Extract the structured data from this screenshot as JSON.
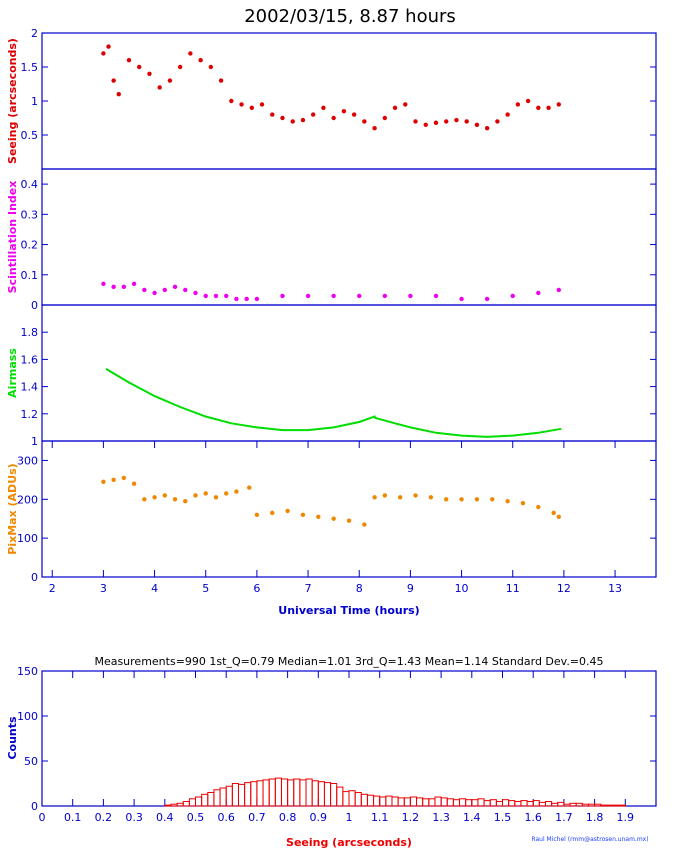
{
  "title": "2002/03/15, 8.87 hours",
  "colors": {
    "axis": "#0000cc",
    "seeing": "#dd0000",
    "scint": "#ee00ee",
    "airmass": "#00dd00",
    "pixmax": "#ee8800",
    "hist": "#ee0000"
  },
  "chart_data": [
    {
      "type": "scatter",
      "ylabel": "Seeing (arcseconds)",
      "xlim": [
        1.8,
        13.8
      ],
      "ylim": [
        0,
        2
      ],
      "yticks": [
        "0.5",
        "1",
        "1.5",
        "2"
      ],
      "grid": false,
      "series": [
        {
          "x": [
            3.0,
            3.1,
            3.2,
            3.3,
            3.5,
            3.7,
            3.9,
            4.1,
            4.3,
            4.5,
            4.7,
            4.9,
            5.1,
            5.3,
            5.5,
            5.7,
            5.9,
            6.1,
            6.3,
            6.5,
            6.7,
            6.9,
            7.1,
            7.3,
            7.5,
            7.7,
            7.9,
            8.1,
            8.3,
            8.5,
            8.7,
            8.9,
            9.1,
            9.3,
            9.5,
            9.7,
            9.9,
            10.1,
            10.3,
            10.5,
            10.7,
            10.9,
            11.1,
            11.3,
            11.5,
            11.7,
            11.9
          ],
          "values": [
            1.7,
            1.8,
            1.3,
            1.1,
            1.6,
            1.5,
            1.4,
            1.2,
            1.3,
            1.5,
            1.7,
            1.6,
            1.5,
            1.3,
            1.0,
            0.95,
            0.9,
            0.95,
            0.8,
            0.75,
            0.7,
            0.72,
            0.8,
            0.9,
            0.75,
            0.85,
            0.8,
            0.7,
            0.6,
            0.75,
            0.9,
            0.95,
            0.7,
            0.65,
            0.68,
            0.7,
            0.72,
            0.7,
            0.65,
            0.6,
            0.7,
            0.8,
            0.95,
            1.0,
            0.9,
            0.9,
            0.95
          ]
        }
      ]
    },
    {
      "type": "scatter",
      "ylabel": "Scintillation Index",
      "xlim": [
        1.8,
        13.8
      ],
      "ylim": [
        0,
        0.45
      ],
      "yticks": [
        "0",
        "0.1",
        "0.2",
        "0.3",
        "0.4"
      ],
      "grid": false,
      "series": [
        {
          "x": [
            3.0,
            3.2,
            3.4,
            3.6,
            3.8,
            4.0,
            4.2,
            4.4,
            4.6,
            4.8,
            5.0,
            5.2,
            5.4,
            5.6,
            5.8,
            6.0,
            6.5,
            7.0,
            7.5,
            8.0,
            8.5,
            9.0,
            9.5,
            10.0,
            10.5,
            11.0,
            11.5,
            11.9
          ],
          "values": [
            0.07,
            0.06,
            0.06,
            0.07,
            0.05,
            0.04,
            0.05,
            0.06,
            0.05,
            0.04,
            0.03,
            0.03,
            0.03,
            0.02,
            0.02,
            0.02,
            0.03,
            0.03,
            0.03,
            0.03,
            0.03,
            0.03,
            0.03,
            0.02,
            0.02,
            0.03,
            0.04,
            0.05
          ]
        }
      ]
    },
    {
      "type": "line",
      "ylabel": "Airmass",
      "xlim": [
        1.8,
        13.8
      ],
      "ylim": [
        1.0,
        2.0
      ],
      "yticks": [
        "1",
        "1.2",
        "1.4",
        "1.6",
        "1.8"
      ],
      "grid": false,
      "series": [
        {
          "x": [
            3.05,
            3.5,
            4.0,
            4.5,
            5.0,
            5.5,
            6.0,
            6.5,
            7.0,
            7.5,
            8.0,
            8.3,
            8.31,
            8.7,
            9.0,
            9.5,
            10.0,
            10.5,
            11.0,
            11.5,
            11.95
          ],
          "values": [
            1.53,
            1.43,
            1.33,
            1.25,
            1.18,
            1.13,
            1.1,
            1.08,
            1.08,
            1.1,
            1.14,
            1.18,
            1.17,
            1.13,
            1.1,
            1.06,
            1.04,
            1.03,
            1.04,
            1.06,
            1.09
          ]
        }
      ]
    },
    {
      "type": "scatter",
      "ylabel": "PixMax (ADUs)",
      "xlabel": "Universal Time (hours)",
      "xlim": [
        1.8,
        13.8
      ],
      "ylim": [
        0,
        350
      ],
      "xticks": [
        "2",
        "3",
        "4",
        "5",
        "6",
        "7",
        "8",
        "9",
        "10",
        "11",
        "12",
        "13"
      ],
      "yticks": [
        "0",
        "100",
        "200",
        "300"
      ],
      "grid": false,
      "series": [
        {
          "x": [
            3.0,
            3.2,
            3.4,
            3.6,
            3.8,
            4.0,
            4.2,
            4.4,
            4.6,
            4.8,
            5.0,
            5.2,
            5.4,
            5.6,
            5.85,
            6.0,
            6.3,
            6.6,
            6.9,
            7.2,
            7.5,
            7.8,
            8.1,
            8.3,
            8.5,
            8.8,
            9.1,
            9.4,
            9.7,
            10.0,
            10.3,
            10.6,
            10.9,
            11.2,
            11.5,
            11.8,
            11.9
          ],
          "values": [
            245,
            250,
            255,
            240,
            200,
            205,
            210,
            200,
            195,
            210,
            215,
            205,
            215,
            220,
            230,
            160,
            165,
            170,
            160,
            155,
            150,
            145,
            135,
            205,
            210,
            205,
            210,
            205,
            200,
            200,
            200,
            200,
            195,
            190,
            180,
            165,
            155
          ]
        }
      ]
    },
    {
      "type": "bar",
      "xlabel": "Seeing (arcseconds)",
      "ylabel": "Counts",
      "xlim": [
        0,
        2
      ],
      "ylim": [
        0,
        150
      ],
      "xticks": [
        "0",
        "0.1",
        "0.2",
        "0.3",
        "0.4",
        "0.5",
        "0.6",
        "0.7",
        "0.8",
        "0.9",
        "1",
        "1.1",
        "1.2",
        "1.3",
        "1.4",
        "1.5",
        "1.6",
        "1.7",
        "1.8",
        "1.9"
      ],
      "yticks": [
        "0",
        "50",
        "100",
        "150"
      ],
      "bin_width": 0.02,
      "bin_start": 0.4,
      "values": [
        1,
        2,
        3,
        5,
        8,
        10,
        13,
        15,
        18,
        20,
        22,
        25,
        24,
        26,
        27,
        28,
        29,
        30,
        31,
        30,
        29,
        30,
        29,
        30,
        28,
        27,
        26,
        25,
        21,
        16,
        17,
        15,
        13,
        12,
        11,
        10,
        11,
        10,
        9,
        9,
        10,
        9,
        8,
        8,
        10,
        9,
        8,
        7,
        8,
        7,
        7,
        8,
        6,
        7,
        5,
        7,
        6,
        5,
        6,
        5,
        6,
        4,
        5,
        3,
        4,
        2,
        3,
        3,
        2,
        2,
        2,
        1,
        1,
        1,
        1
      ],
      "stats": "Measurements=990    1st_Q=0.79    Median=1.01    3rd_Q=1.43    Mean=1.14    Standard Dev.=0.45",
      "credit": "Raul Michel (rmm@astrosen.unam.mx)"
    }
  ]
}
